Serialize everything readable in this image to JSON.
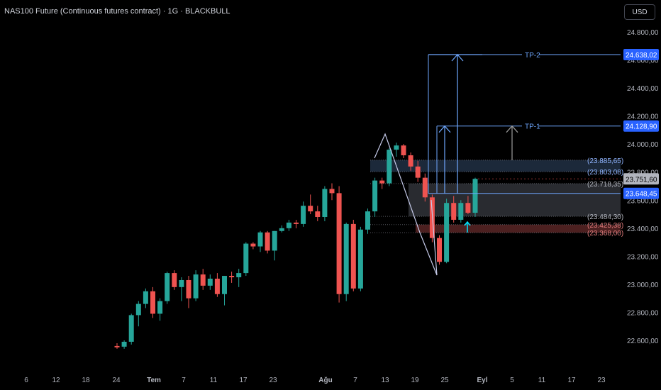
{
  "header": {
    "title": "NAS100 Future (Continuous futures contract) · 1G · BLACKBULL",
    "currency": "USD"
  },
  "chart_data": {
    "type": "candlestick",
    "x_tick_labels": [
      "6",
      "12",
      "18",
      "24",
      "Tem",
      "7",
      "11",
      "17",
      "23",
      "Ağu",
      "7",
      "13",
      "19",
      "25",
      "Eyl",
      "5",
      "11",
      "17",
      "23"
    ],
    "y_tick_labels": [
      "24.800,00",
      "24.600,00",
      "24.400,00",
      "24.200,00",
      "24.000,00",
      "23.800,00",
      "23.600,00",
      "23.400,00",
      "23.200,00",
      "23.000,00",
      "22.800,00",
      "22.600,00"
    ],
    "y_ticks": [
      24800,
      24600,
      24400,
      24200,
      24000,
      23800,
      23600,
      23400,
      23200,
      23000,
      22800,
      22600
    ],
    "ylim": [
      22430,
      24960
    ],
    "candles": [
      {
        "o": 22560,
        "h": 22580,
        "l": 22540,
        "c": 22550
      },
      {
        "o": 22555,
        "h": 22600,
        "l": 22540,
        "c": 22590
      },
      {
        "o": 22590,
        "h": 22790,
        "l": 22570,
        "c": 22780
      },
      {
        "o": 22780,
        "h": 22880,
        "l": 22700,
        "c": 22860
      },
      {
        "o": 22860,
        "h": 22970,
        "l": 22830,
        "c": 22950
      },
      {
        "o": 22950,
        "h": 22980,
        "l": 22760,
        "c": 22790
      },
      {
        "o": 22790,
        "h": 22900,
        "l": 22740,
        "c": 22880
      },
      {
        "o": 22880,
        "h": 23090,
        "l": 22860,
        "c": 23080
      },
      {
        "o": 23080,
        "h": 23100,
        "l": 22960,
        "c": 22980
      },
      {
        "o": 22980,
        "h": 23050,
        "l": 22880,
        "c": 23030
      },
      {
        "o": 23030,
        "h": 23060,
        "l": 22830,
        "c": 22900
      },
      {
        "o": 22900,
        "h": 23100,
        "l": 22880,
        "c": 23070
      },
      {
        "o": 23070,
        "h": 23110,
        "l": 22960,
        "c": 22990
      },
      {
        "o": 22990,
        "h": 23070,
        "l": 22960,
        "c": 23040
      },
      {
        "o": 23040,
        "h": 23080,
        "l": 22910,
        "c": 22930
      },
      {
        "o": 22930,
        "h": 23060,
        "l": 22850,
        "c": 23060
      },
      {
        "o": 23060,
        "h": 23090,
        "l": 23010,
        "c": 23050
      },
      {
        "o": 23050,
        "h": 23110,
        "l": 22980,
        "c": 23080
      },
      {
        "o": 23080,
        "h": 23300,
        "l": 23060,
        "c": 23290
      },
      {
        "o": 23290,
        "h": 23300,
        "l": 23250,
        "c": 23270
      },
      {
        "o": 23270,
        "h": 23380,
        "l": 23230,
        "c": 23370
      },
      {
        "o": 23370,
        "h": 23380,
        "l": 23220,
        "c": 23240
      },
      {
        "o": 23240,
        "h": 23380,
        "l": 23170,
        "c": 23380
      },
      {
        "o": 23380,
        "h": 23420,
        "l": 23370,
        "c": 23400
      },
      {
        "o": 23400,
        "h": 23460,
        "l": 23380,
        "c": 23440
      },
      {
        "o": 23440,
        "h": 23460,
        "l": 23400,
        "c": 23430
      },
      {
        "o": 23430,
        "h": 23590,
        "l": 23410,
        "c": 23560
      },
      {
        "o": 23560,
        "h": 23640,
        "l": 23500,
        "c": 23520
      },
      {
        "o": 23520,
        "h": 23560,
        "l": 23450,
        "c": 23480
      },
      {
        "o": 23480,
        "h": 23700,
        "l": 23450,
        "c": 23680
      },
      {
        "o": 23680,
        "h": 23720,
        "l": 23600,
        "c": 23650
      },
      {
        "o": 23650,
        "h": 23700,
        "l": 22870,
        "c": 22930
      },
      {
        "o": 22930,
        "h": 23440,
        "l": 22880,
        "c": 23430
      },
      {
        "o": 23430,
        "h": 23460,
        "l": 22950,
        "c": 22970
      },
      {
        "o": 22970,
        "h": 23410,
        "l": 22950,
        "c": 23390
      },
      {
        "o": 23390,
        "h": 23540,
        "l": 23360,
        "c": 23520
      },
      {
        "o": 23520,
        "h": 23760,
        "l": 23480,
        "c": 23740
      },
      {
        "o": 23740,
        "h": 23760,
        "l": 23680,
        "c": 23720
      },
      {
        "o": 23720,
        "h": 23970,
        "l": 23700,
        "c": 23960
      },
      {
        "o": 23960,
        "h": 24010,
        "l": 23910,
        "c": 23990
      },
      {
        "o": 23990,
        "h": 24000,
        "l": 23900,
        "c": 23920
      },
      {
        "o": 23920,
        "h": 23940,
        "l": 23810,
        "c": 23840
      },
      {
        "o": 23840,
        "h": 23880,
        "l": 23730,
        "c": 23760
      },
      {
        "o": 23760,
        "h": 23790,
        "l": 23590,
        "c": 23620
      },
      {
        "o": 23620,
        "h": 23640,
        "l": 23300,
        "c": 23330
      },
      {
        "o": 23330,
        "h": 23350,
        "l": 23140,
        "c": 23160
      },
      {
        "o": 23160,
        "h": 23610,
        "l": 23150,
        "c": 23580
      },
      {
        "o": 23580,
        "h": 23630,
        "l": 23440,
        "c": 23460
      },
      {
        "o": 23460,
        "h": 23600,
        "l": 23440,
        "c": 23580
      },
      {
        "o": 23580,
        "h": 23630,
        "l": 23500,
        "c": 23510
      },
      {
        "o": 23510,
        "h": 23760,
        "l": 23480,
        "c": 23752
      }
    ],
    "levels": [
      {
        "value": 23885.65,
        "label": "(23.885,65)"
      },
      {
        "value": 23803.08,
        "label": "(23.803,08)"
      },
      {
        "value": 23718.35,
        "label": "(23.718,35)"
      },
      {
        "value": 23484.3,
        "label": "(23.484,30)"
      },
      {
        "value": 23425.38,
        "label": "(23.425,38)"
      },
      {
        "value": 23368.0,
        "label": "(23.368,00)"
      }
    ],
    "targets": [
      {
        "name": "TP-2",
        "value": 24638.02,
        "badge": "24.638,02"
      },
      {
        "name": "TP-1",
        "value": 24128.9,
        "badge": "24.128,90"
      }
    ],
    "entry_badge": {
      "value": 23648.45,
      "label": "23.648,45"
    },
    "last_price": {
      "value": 23751.6,
      "label": "23.751,60"
    },
    "colors": {
      "up": "#26a69a",
      "down": "#ef5350",
      "target_line": "#6fa8ff",
      "badge_blue": "#2962ff",
      "zone_blue": "#3d5a80",
      "zone_red": "#8b3a3a",
      "grid_text": "#b2b5be"
    }
  }
}
